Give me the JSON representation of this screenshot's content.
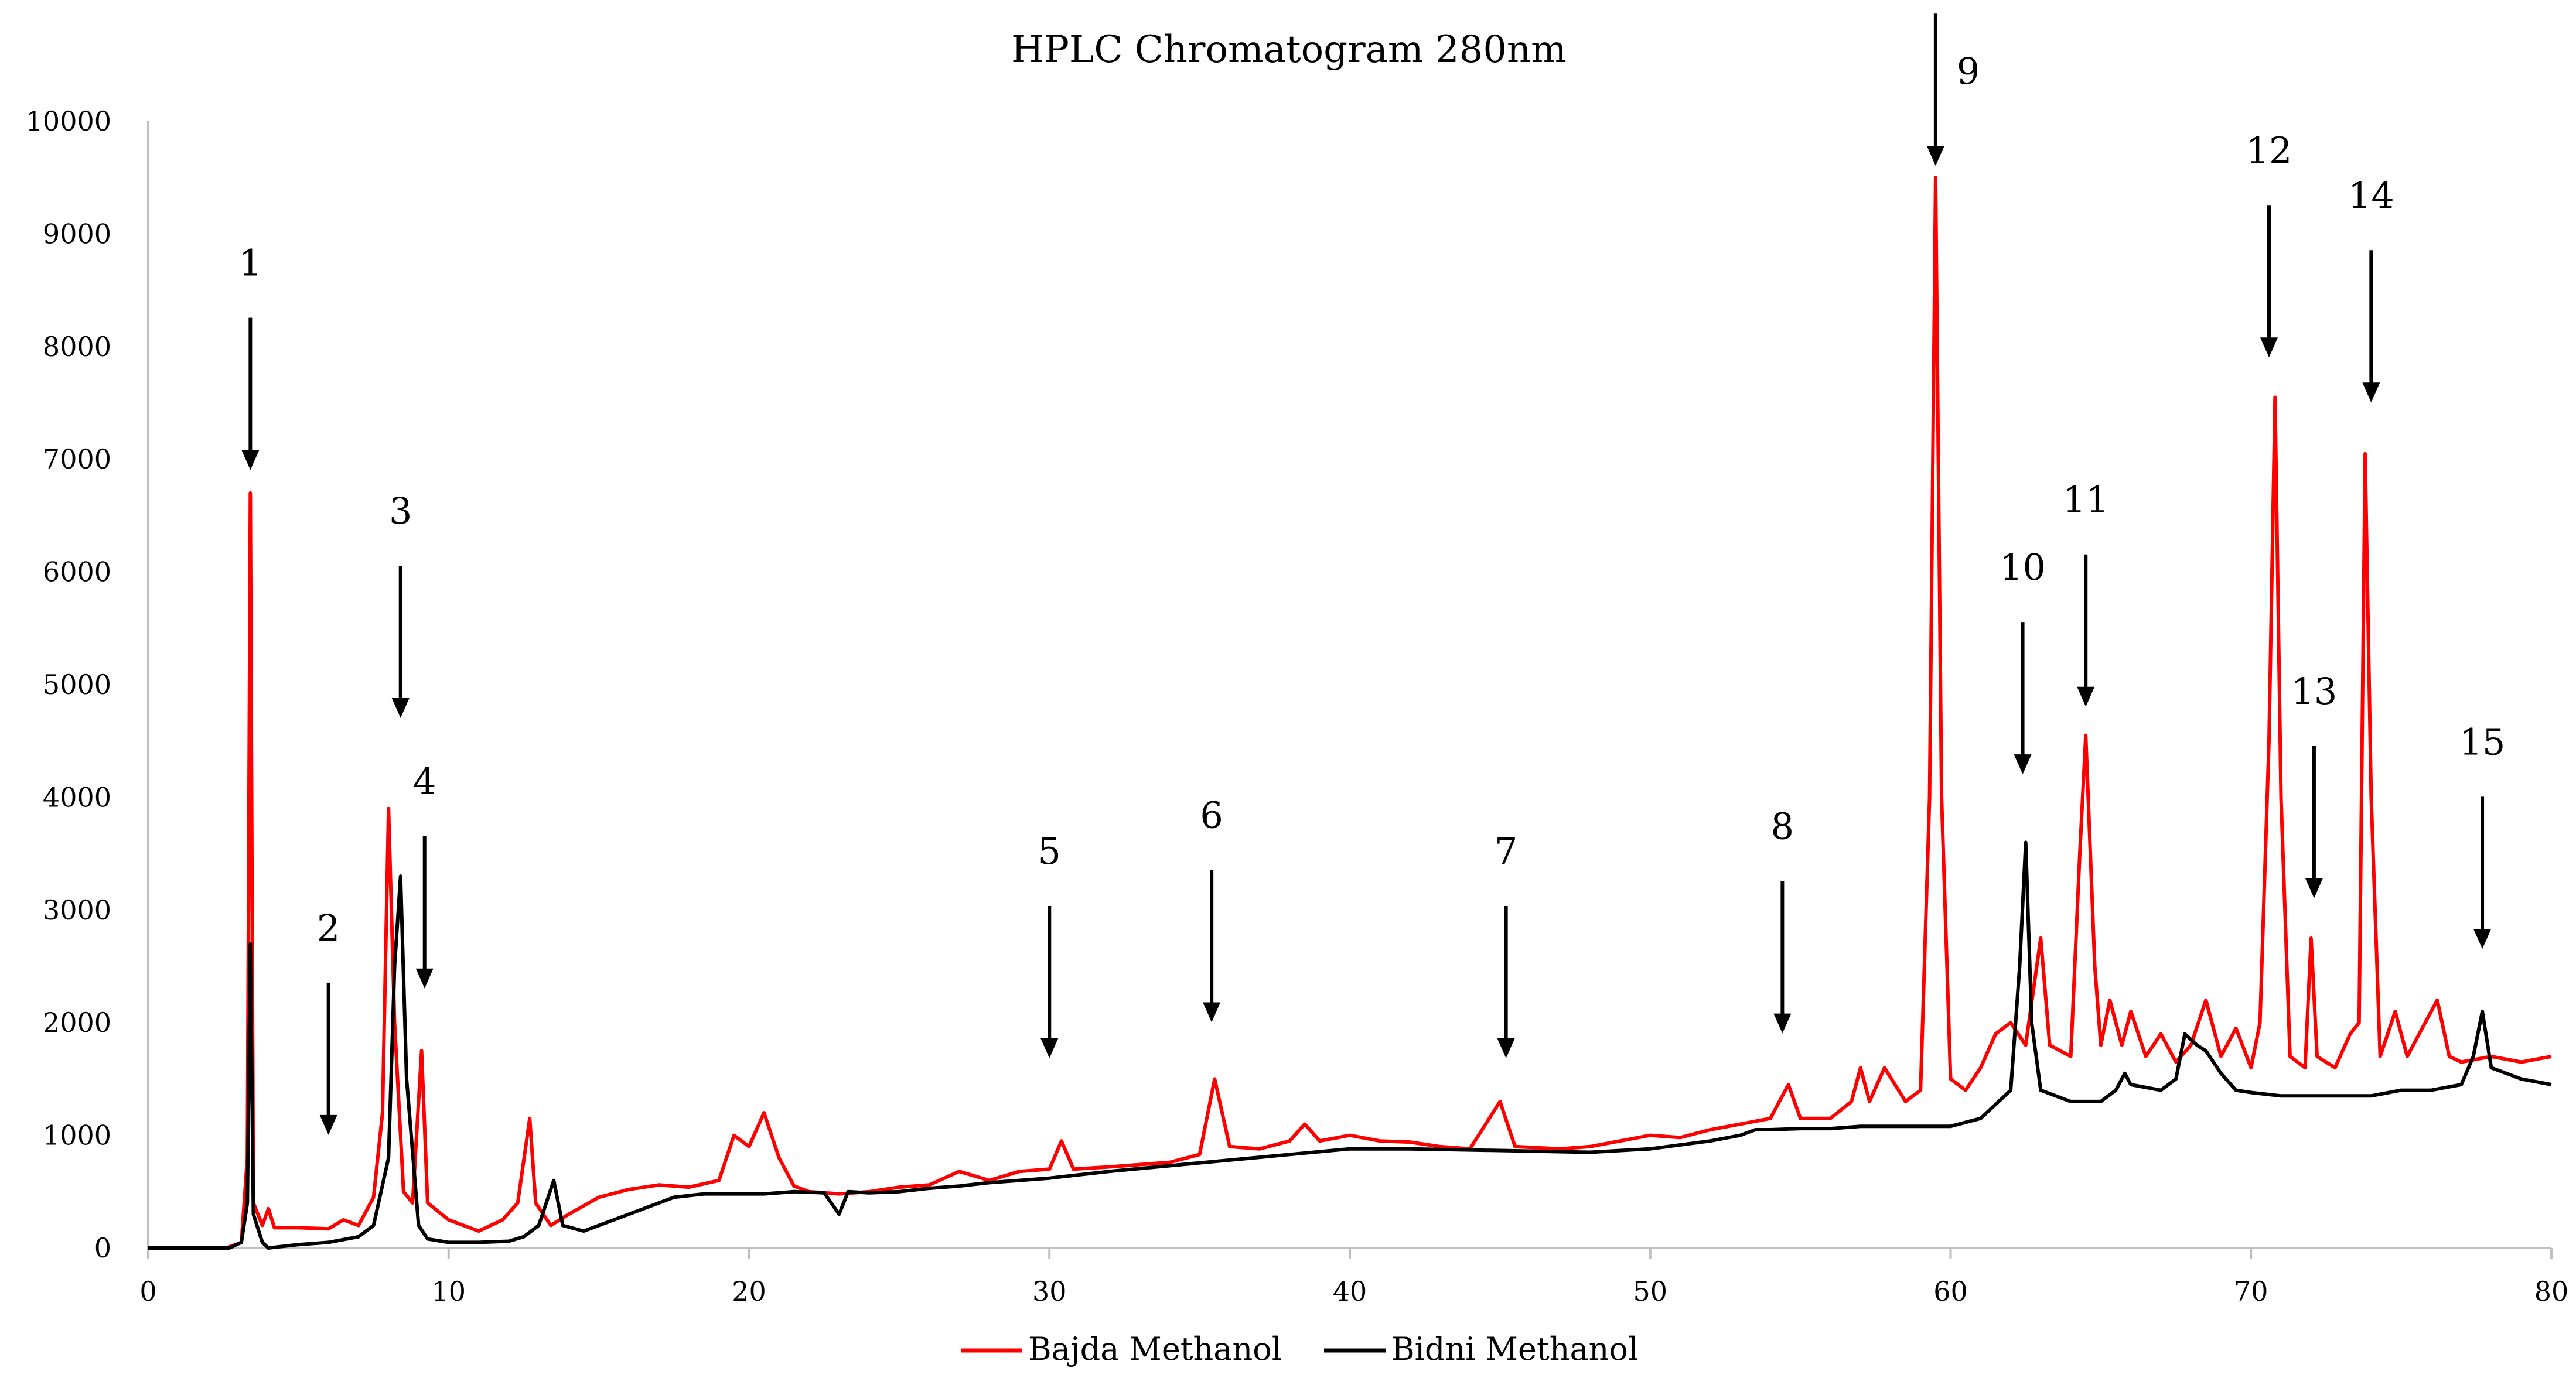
{
  "chart_data": {
    "type": "line",
    "title": "HPLC Chromatogram 280nm",
    "xlabel": "",
    "ylabel": "",
    "xlim": [
      0,
      80
    ],
    "ylim": [
      0,
      10000
    ],
    "x_ticks": [
      "0",
      "10",
      "20",
      "30",
      "40",
      "50",
      "60",
      "70",
      "80"
    ],
    "y_ticks": [
      "0",
      "1000",
      "2000",
      "3000",
      "4000",
      "5000",
      "6000",
      "7000",
      "8000",
      "9000",
      "10000"
    ],
    "grid": false,
    "legend_position": "bottom-center",
    "series": [
      {
        "name": "Bajda Methanol",
        "color": "#ff0000",
        "points": [
          [
            0,
            0
          ],
          [
            2.6,
            0
          ],
          [
            3.1,
            50
          ],
          [
            3.3,
            800
          ],
          [
            3.4,
            6700
          ],
          [
            3.5,
            400
          ],
          [
            3.8,
            200
          ],
          [
            4,
            350
          ],
          [
            4.2,
            180
          ],
          [
            5,
            180
          ],
          [
            6,
            170
          ],
          [
            6.5,
            250
          ],
          [
            7,
            200
          ],
          [
            7.5,
            450
          ],
          [
            7.8,
            1200
          ],
          [
            8,
            3900
          ],
          [
            8.2,
            2000
          ],
          [
            8.5,
            500
          ],
          [
            8.8,
            400
          ],
          [
            9.1,
            1750
          ],
          [
            9.3,
            400
          ],
          [
            10,
            250
          ],
          [
            11,
            150
          ],
          [
            11.8,
            250
          ],
          [
            12.3,
            400
          ],
          [
            12.7,
            1150
          ],
          [
            12.9,
            400
          ],
          [
            13.4,
            200
          ],
          [
            14,
            300
          ],
          [
            15,
            450
          ],
          [
            16,
            520
          ],
          [
            17,
            560
          ],
          [
            18,
            540
          ],
          [
            19,
            600
          ],
          [
            19.5,
            1000
          ],
          [
            20,
            900
          ],
          [
            20.5,
            1200
          ],
          [
            21,
            800
          ],
          [
            21.5,
            550
          ],
          [
            22,
            500
          ],
          [
            23,
            480
          ],
          [
            24,
            500
          ],
          [
            25,
            540
          ],
          [
            26,
            560
          ],
          [
            27,
            680
          ],
          [
            28,
            600
          ],
          [
            29,
            680
          ],
          [
            30,
            700
          ],
          [
            30.4,
            950
          ],
          [
            30.8,
            700
          ],
          [
            32,
            720
          ],
          [
            34,
            760
          ],
          [
            35,
            830
          ],
          [
            35.5,
            1500
          ],
          [
            36,
            900
          ],
          [
            37,
            880
          ],
          [
            38,
            950
          ],
          [
            38.5,
            1100
          ],
          [
            39,
            950
          ],
          [
            40,
            1000
          ],
          [
            41,
            950
          ],
          [
            42,
            940
          ],
          [
            43,
            900
          ],
          [
            44,
            880
          ],
          [
            45,
            1300
          ],
          [
            45.5,
            900
          ],
          [
            47,
            880
          ],
          [
            48,
            900
          ],
          [
            49,
            950
          ],
          [
            50,
            1000
          ],
          [
            51,
            980
          ],
          [
            52,
            1050
          ],
          [
            53,
            1100
          ],
          [
            54,
            1150
          ],
          [
            54.6,
            1450
          ],
          [
            55,
            1150
          ],
          [
            56,
            1150
          ],
          [
            56.7,
            1300
          ],
          [
            57,
            1600
          ],
          [
            57.3,
            1300
          ],
          [
            57.8,
            1600
          ],
          [
            58.5,
            1300
          ],
          [
            59,
            1400
          ],
          [
            59.3,
            4000
          ],
          [
            59.5,
            9500
          ],
          [
            59.7,
            4000
          ],
          [
            60,
            1500
          ],
          [
            60.5,
            1400
          ],
          [
            61,
            1600
          ],
          [
            61.5,
            1900
          ],
          [
            62,
            2000
          ],
          [
            62.5,
            1800
          ],
          [
            63,
            2750
          ],
          [
            63.3,
            1800
          ],
          [
            64,
            1700
          ],
          [
            64.3,
            3500
          ],
          [
            64.5,
            4550
          ],
          [
            64.8,
            2500
          ],
          [
            65,
            1800
          ],
          [
            65.3,
            2200
          ],
          [
            65.7,
            1800
          ],
          [
            66,
            2100
          ],
          [
            66.5,
            1700
          ],
          [
            67,
            1900
          ],
          [
            67.5,
            1650
          ],
          [
            68,
            1800
          ],
          [
            68.5,
            2200
          ],
          [
            69,
            1700
          ],
          [
            69.5,
            1950
          ],
          [
            70,
            1600
          ],
          [
            70.3,
            2000
          ],
          [
            70.6,
            4500
          ],
          [
            70.8,
            7550
          ],
          [
            71,
            4000
          ],
          [
            71.3,
            1700
          ],
          [
            71.8,
            1600
          ],
          [
            72,
            2750
          ],
          [
            72.2,
            1700
          ],
          [
            72.8,
            1600
          ],
          [
            73.3,
            1900
          ],
          [
            73.6,
            2000
          ],
          [
            73.8,
            7050
          ],
          [
            74,
            4000
          ],
          [
            74.3,
            1700
          ],
          [
            74.8,
            2100
          ],
          [
            75.2,
            1700
          ],
          [
            75.8,
            2000
          ],
          [
            76.2,
            2200
          ],
          [
            76.6,
            1700
          ],
          [
            77,
            1650
          ],
          [
            78,
            1700
          ],
          [
            79,
            1650
          ],
          [
            80,
            1700
          ]
        ]
      },
      {
        "name": "Bidni Methanol",
        "color": "#000000",
        "points": [
          [
            0,
            0
          ],
          [
            2.7,
            0
          ],
          [
            3.1,
            50
          ],
          [
            3.3,
            400
          ],
          [
            3.4,
            2700
          ],
          [
            3.5,
            300
          ],
          [
            3.8,
            50
          ],
          [
            4,
            0
          ],
          [
            5,
            30
          ],
          [
            6,
            50
          ],
          [
            7,
            100
          ],
          [
            7.5,
            200
          ],
          [
            8,
            800
          ],
          [
            8.2,
            2500
          ],
          [
            8.4,
            3300
          ],
          [
            8.6,
            1500
          ],
          [
            9,
            200
          ],
          [
            9.3,
            80
          ],
          [
            10,
            50
          ],
          [
            11,
            50
          ],
          [
            12,
            60
          ],
          [
            12.5,
            100
          ],
          [
            13,
            200
          ],
          [
            13.5,
            600
          ],
          [
            13.8,
            200
          ],
          [
            14.5,
            150
          ],
          [
            15.5,
            250
          ],
          [
            16.5,
            350
          ],
          [
            17.5,
            450
          ],
          [
            18.5,
            480
          ],
          [
            19.5,
            480
          ],
          [
            20.5,
            480
          ],
          [
            21.5,
            500
          ],
          [
            22.5,
            490
          ],
          [
            23,
            300
          ],
          [
            23.3,
            500
          ],
          [
            24,
            490
          ],
          [
            25,
            500
          ],
          [
            26,
            530
          ],
          [
            27,
            550
          ],
          [
            28,
            580
          ],
          [
            29,
            600
          ],
          [
            30,
            620
          ],
          [
            32,
            680
          ],
          [
            34,
            730
          ],
          [
            36,
            780
          ],
          [
            38,
            830
          ],
          [
            40,
            880
          ],
          [
            42,
            880
          ],
          [
            44,
            870
          ],
          [
            46,
            860
          ],
          [
            48,
            850
          ],
          [
            50,
            880
          ],
          [
            52,
            950
          ],
          [
            53,
            1000
          ],
          [
            53.5,
            1050
          ],
          [
            54,
            1050
          ],
          [
            55,
            1060
          ],
          [
            56,
            1060
          ],
          [
            57,
            1080
          ],
          [
            58,
            1080
          ],
          [
            59,
            1080
          ],
          [
            60,
            1080
          ],
          [
            61,
            1150
          ],
          [
            62,
            1400
          ],
          [
            62.3,
            2500
          ],
          [
            62.5,
            3600
          ],
          [
            62.7,
            2000
          ],
          [
            63,
            1400
          ],
          [
            63.5,
            1350
          ],
          [
            64,
            1300
          ],
          [
            65,
            1300
          ],
          [
            65.5,
            1400
          ],
          [
            65.8,
            1550
          ],
          [
            66,
            1450
          ],
          [
            67,
            1400
          ],
          [
            67.5,
            1500
          ],
          [
            67.8,
            1900
          ],
          [
            68.2,
            1800
          ],
          [
            68.5,
            1750
          ],
          [
            69,
            1550
          ],
          [
            69.5,
            1400
          ],
          [
            70,
            1380
          ],
          [
            71,
            1350
          ],
          [
            72,
            1350
          ],
          [
            73,
            1350
          ],
          [
            74,
            1350
          ],
          [
            75,
            1400
          ],
          [
            76,
            1400
          ],
          [
            77,
            1450
          ],
          [
            77.4,
            1700
          ],
          [
            77.7,
            2100
          ],
          [
            78,
            1600
          ],
          [
            78.5,
            1550
          ],
          [
            79,
            1500
          ],
          [
            80,
            1450
          ]
        ]
      }
    ],
    "annotations": [
      {
        "label": "1",
        "x": 3.4,
        "y": 6800
      },
      {
        "label": "2",
        "x": 6.0,
        "y": 900
      },
      {
        "label": "3",
        "x": 8.4,
        "y": 4600
      },
      {
        "label": "4",
        "x": 9.2,
        "y": 2200
      },
      {
        "label": "5",
        "x": 30.0,
        "y": 1580
      },
      {
        "label": "6",
        "x": 35.4,
        "y": 1900
      },
      {
        "label": "7",
        "x": 45.2,
        "y": 1580
      },
      {
        "label": "8",
        "x": 54.4,
        "y": 1800
      },
      {
        "label": "9",
        "x": 59.5,
        "y": 9500
      },
      {
        "label": "10",
        "x": 62.4,
        "y": 4100
      },
      {
        "label": "11",
        "x": 64.5,
        "y": 4700
      },
      {
        "label": "12",
        "x": 70.6,
        "y": 7800
      },
      {
        "label": "13",
        "x": 72.1,
        "y": 3000
      },
      {
        "label": "14",
        "x": 74.0,
        "y": 7400
      },
      {
        "label": "15",
        "x": 77.7,
        "y": 2550
      }
    ]
  }
}
